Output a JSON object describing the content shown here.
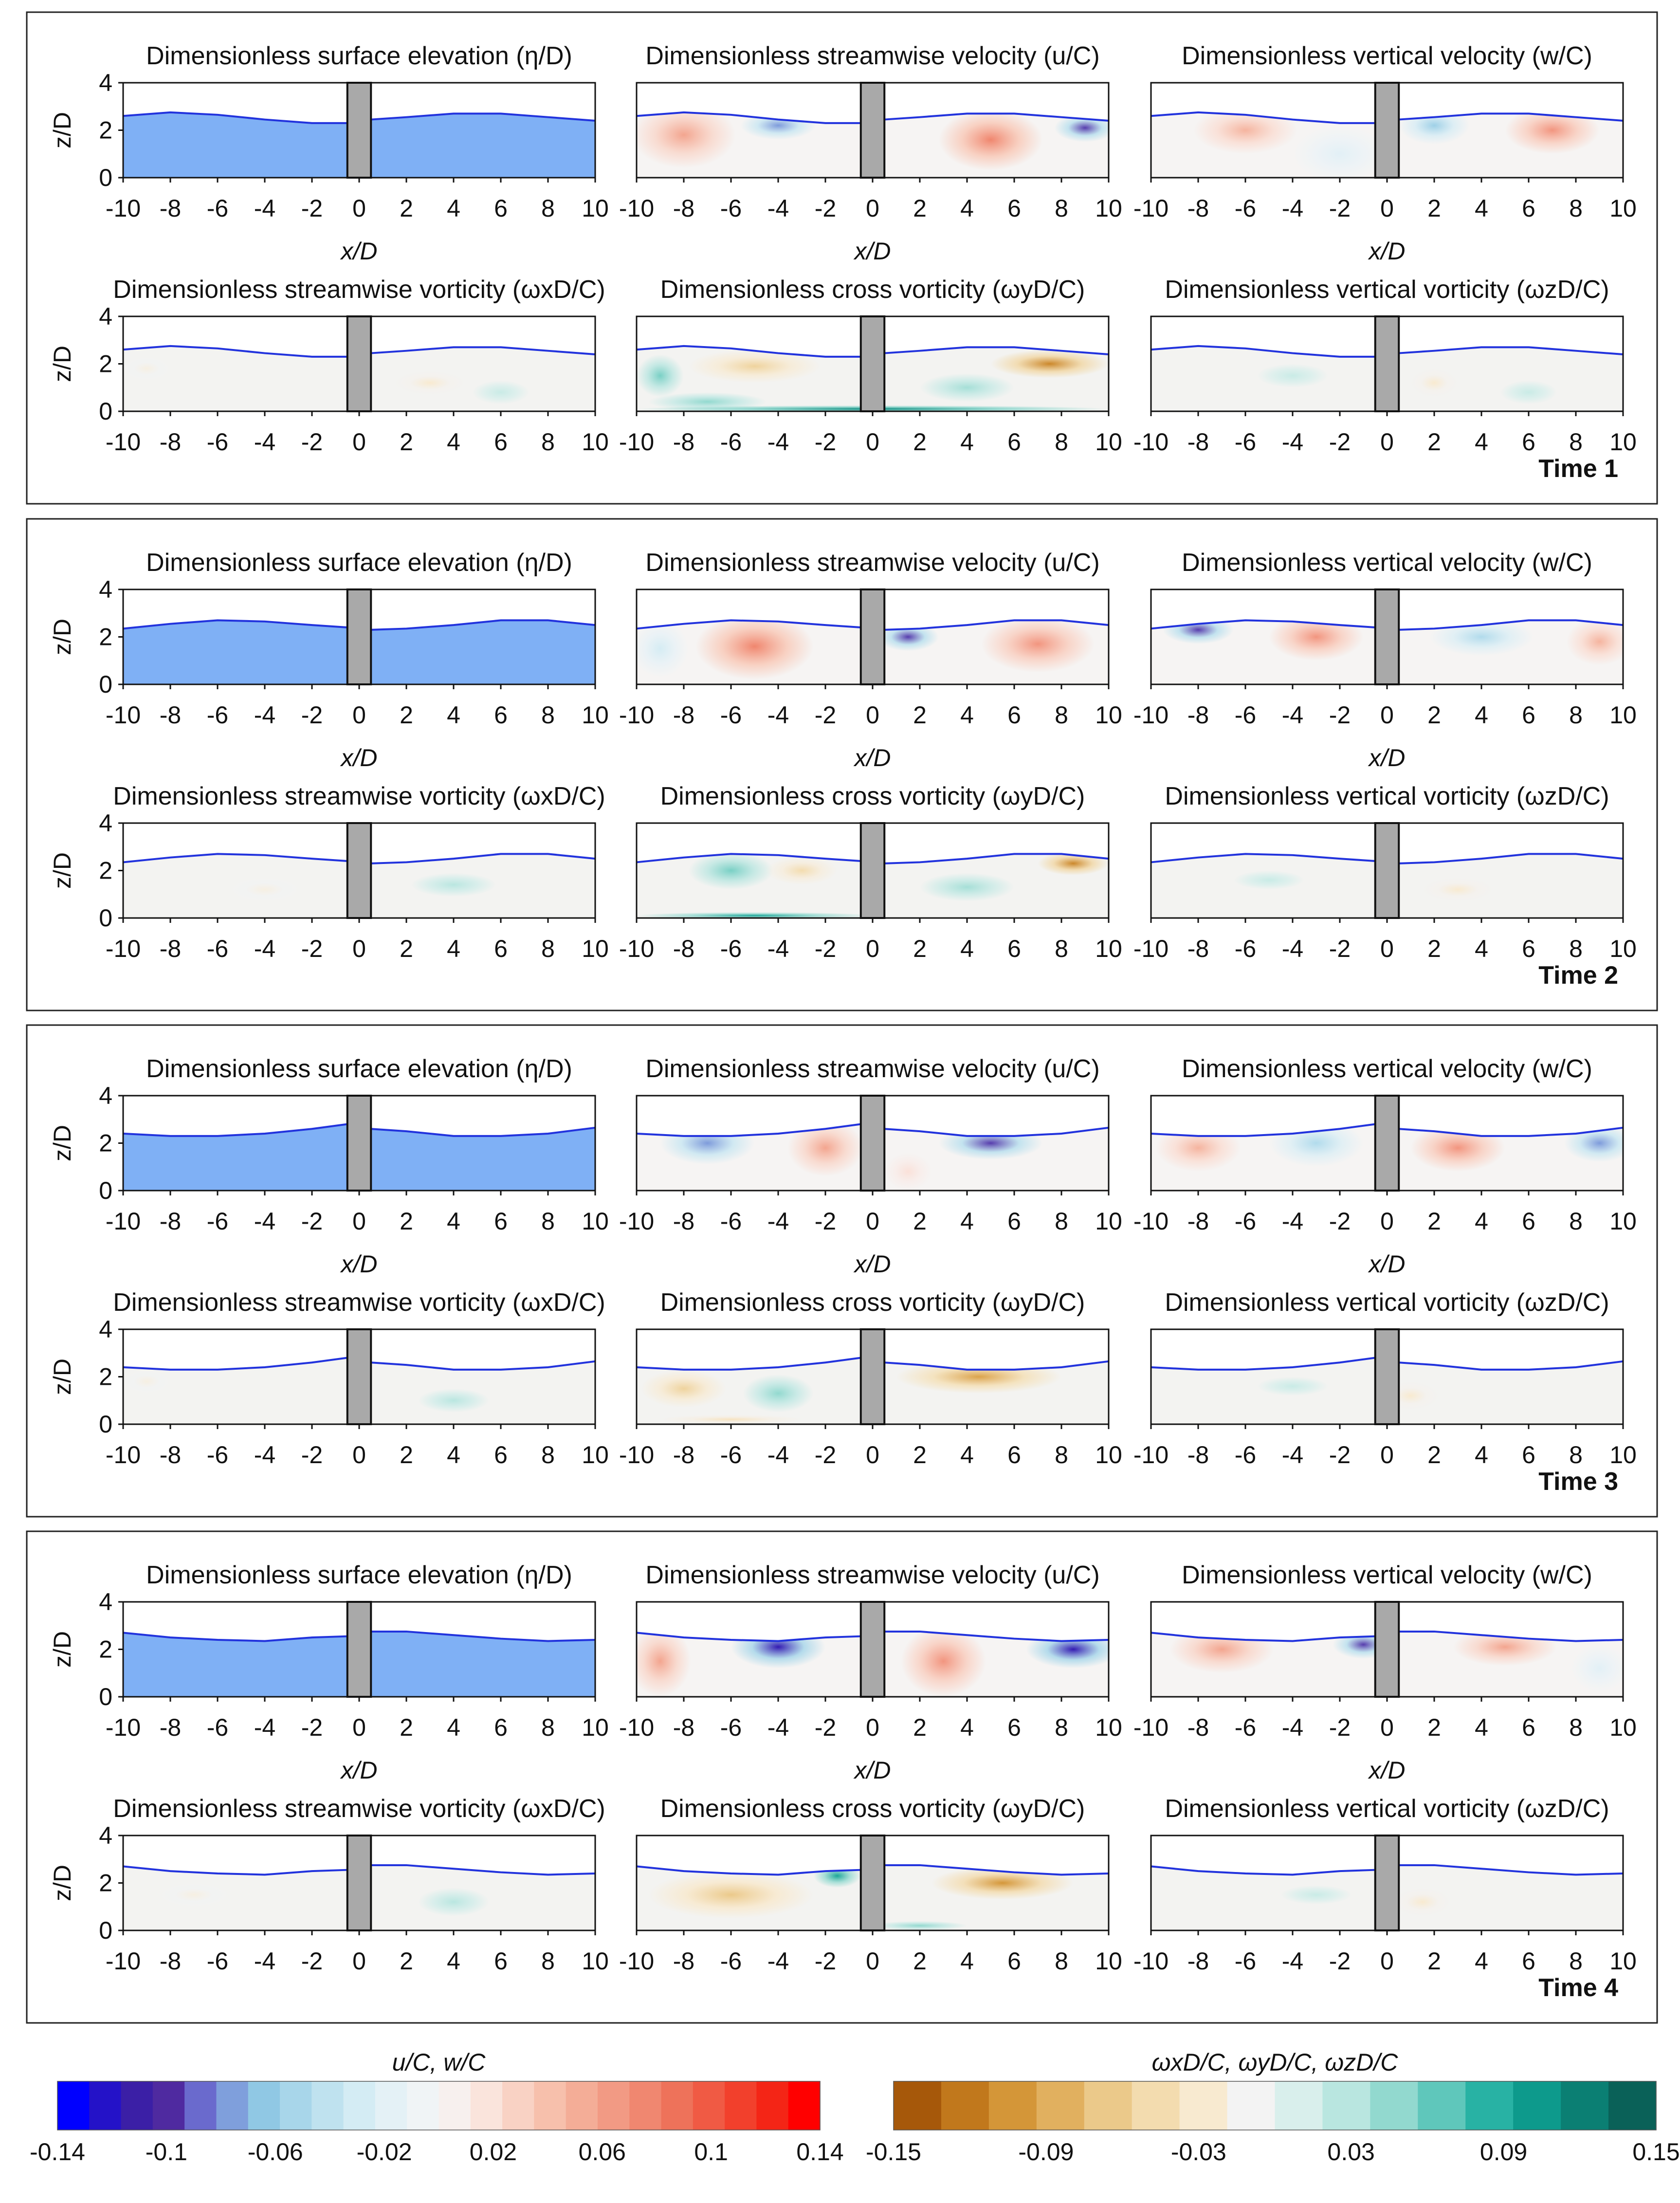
{
  "figure": {
    "x_label": "x/D",
    "y_label": "z/D",
    "x_ticks": [
      "-10",
      "-8",
      "-6",
      "-4",
      "-2",
      "0",
      "2",
      "4",
      "6",
      "8",
      "10"
    ],
    "y_ticks": [
      "0",
      "2",
      "4"
    ],
    "panel_titles": [
      "Dimensionless surface elevation (η/D)",
      "Dimensionless streamwise velocity (u/C)",
      "Dimensionless vertical velocity (w/C)",
      "Dimensionless streamwise vorticity (ωxD/C)",
      "Dimensionless cross vorticity (ωyD/C)",
      "Dimensionless vertical vorticity (ωzD/C)"
    ],
    "time_labels": [
      "Time 1",
      "Time 2",
      "Time 3",
      "Time 4"
    ]
  },
  "colorbars": {
    "velocity": {
      "label": "u/C, w/C",
      "tick_labels": [
        "-0.14",
        "-0.1",
        "-0.06",
        "-0.02",
        "0.02",
        "0.06",
        "0.1",
        "0.14"
      ],
      "colors": [
        "#0000ff",
        "#2412c8",
        "#3b1fa6",
        "#4f2aa0",
        "#6a6acd",
        "#7f9fdc",
        "#90c8e4",
        "#a8d6ea",
        "#bfe2ef",
        "#d4ecf4",
        "#e4f1f6",
        "#f0f4f6",
        "#f7f0ee",
        "#fae4dc",
        "#f9d2c4",
        "#f7c0ac",
        "#f4ad97",
        "#f29a84",
        "#f08770",
        "#ee725a",
        "#f05a44",
        "#f2402c",
        "#f42516",
        "#ff0000"
      ]
    },
    "vorticity": {
      "label": "ωxD/C, ωyD/C, ωzD/C",
      "tick_labels": [
        "-0.15",
        "-0.09",
        "-0.03",
        "0.03",
        "0.09",
        "0.15"
      ],
      "colors": [
        "#a6580a",
        "#c1781c",
        "#d49638",
        "#e1b05f",
        "#ebc98a",
        "#f3dcaf",
        "#f8ead0",
        "#f3f3f3",
        "#d9efec",
        "#b9e6e0",
        "#92d9cf",
        "#5fc7bb",
        "#28b2a4",
        "#0d9a8c",
        "#0b7f73",
        "#0a6158"
      ]
    }
  },
  "chart_data": {
    "type": "heatmap",
    "description_units": "x/D from -10 to 10, z/D from 0 to 4; pile occupies x/D -0.5 to 0.5",
    "x_range": [
      -10,
      10
    ],
    "y_range": [
      0,
      4
    ],
    "pile_x": [
      -0.5,
      0.5
    ],
    "times": [
      {
        "label": "Time 1",
        "surface": [
          [
            -10,
            2.6
          ],
          [
            -8,
            2.75
          ],
          [
            -6,
            2.65
          ],
          [
            -4,
            2.45
          ],
          [
            -2,
            2.3
          ],
          [
            -0.5,
            2.3
          ],
          [
            0.5,
            2.45
          ],
          [
            2,
            2.55
          ],
          [
            4,
            2.7
          ],
          [
            6,
            2.7
          ],
          [
            8,
            2.55
          ],
          [
            10,
            2.4
          ]
        ],
        "u": [
          {
            "x": -8,
            "z": 1.8,
            "v": 0.06,
            "rx": 2.2,
            "rz": 1.4
          },
          {
            "x": -4,
            "z": 2.2,
            "v": -0.08,
            "rx": 1.6,
            "rz": 0.6
          },
          {
            "x": 5,
            "z": 1.6,
            "v": 0.08,
            "rx": 2.2,
            "rz": 1.3
          },
          {
            "x": 9,
            "z": 2.1,
            "v": -0.1,
            "rx": 1.3,
            "rz": 0.6
          }
        ],
        "w": [
          {
            "x": -6,
            "z": 2.0,
            "v": 0.05,
            "rx": 2.2,
            "rz": 1.0
          },
          {
            "x": 2,
            "z": 2.2,
            "v": -0.06,
            "rx": 1.5,
            "rz": 0.8
          },
          {
            "x": 7,
            "z": 2.0,
            "v": 0.07,
            "rx": 2.0,
            "rz": 1.0
          },
          {
            "x": -2,
            "z": 1.0,
            "v": -0.02,
            "rx": 2,
            "rz": 1.2
          }
        ],
        "wx": [
          {
            "x": -9,
            "z": 1.8,
            "v": -0.02,
            "rx": 1,
            "rz": 0.5
          },
          {
            "x": 3,
            "z": 1.2,
            "v": -0.03,
            "rx": 1.5,
            "rz": 0.5
          },
          {
            "x": 6,
            "z": 0.8,
            "v": 0.02,
            "rx": 1.2,
            "rz": 0.5
          }
        ],
        "wy": [
          {
            "x": -5,
            "z": 1.9,
            "v": -0.06,
            "rx": 2.8,
            "rz": 0.7
          },
          {
            "x": -9,
            "z": 1.5,
            "v": 0.06,
            "rx": 1.0,
            "rz": 0.9
          },
          {
            "x": -7,
            "z": 0.4,
            "v": 0.05,
            "rx": 2.5,
            "rz": 0.4
          },
          {
            "x": 7.5,
            "z": 2.0,
            "v": -0.12,
            "rx": 2.5,
            "rz": 0.6
          },
          {
            "x": 4,
            "z": 1.0,
            "v": 0.04,
            "rx": 2,
            "rz": 0.6
          },
          {
            "x": 0,
            "z": 0.1,
            "v": 0.12,
            "rx": 10,
            "rz": 0.15
          }
        ],
        "wz": [
          {
            "x": -4,
            "z": 1.5,
            "v": 0.02,
            "rx": 1.5,
            "rz": 0.5
          },
          {
            "x": 2,
            "z": 1.2,
            "v": -0.03,
            "rx": 1.0,
            "rz": 0.6
          },
          {
            "x": 6,
            "z": 0.8,
            "v": 0.02,
            "rx": 1.2,
            "rz": 0.5
          }
        ]
      },
      {
        "label": "Time 2",
        "surface": [
          [
            -10,
            2.35
          ],
          [
            -8,
            2.55
          ],
          [
            -6,
            2.7
          ],
          [
            -4,
            2.65
          ],
          [
            -2,
            2.5
          ],
          [
            -0.5,
            2.4
          ],
          [
            0.5,
            2.3
          ],
          [
            2,
            2.35
          ],
          [
            4,
            2.5
          ],
          [
            6,
            2.7
          ],
          [
            8,
            2.7
          ],
          [
            10,
            2.5
          ]
        ],
        "u": [
          {
            "x": -5,
            "z": 1.6,
            "v": 0.08,
            "rx": 2.5,
            "rz": 1.4
          },
          {
            "x": 1.5,
            "z": 2.0,
            "v": -0.1,
            "rx": 1.3,
            "rz": 0.6
          },
          {
            "x": 7,
            "z": 1.7,
            "v": 0.07,
            "rx": 2.4,
            "rz": 1.2
          },
          {
            "x": -9,
            "z": 1.5,
            "v": -0.03,
            "rx": 1.2,
            "rz": 1.2
          }
        ],
        "w": [
          {
            "x": -8,
            "z": 2.3,
            "v": -0.1,
            "rx": 1.5,
            "rz": 0.6
          },
          {
            "x": -3,
            "z": 2.0,
            "v": 0.07,
            "rx": 2.0,
            "rz": 1.0
          },
          {
            "x": 4,
            "z": 2.0,
            "v": -0.05,
            "rx": 2.2,
            "rz": 0.8
          },
          {
            "x": 9,
            "z": 1.8,
            "v": 0.05,
            "rx": 1.4,
            "rz": 1.0
          }
        ],
        "wx": [
          {
            "x": -4,
            "z": 1.2,
            "v": -0.02,
            "rx": 1.5,
            "rz": 0.5
          },
          {
            "x": 4,
            "z": 1.4,
            "v": 0.03,
            "rx": 1.8,
            "rz": 0.5
          }
        ],
        "wy": [
          {
            "x": -6,
            "z": 2.0,
            "v": 0.06,
            "rx": 1.8,
            "rz": 0.8
          },
          {
            "x": -3,
            "z": 2.0,
            "v": -0.05,
            "rx": 1.5,
            "rz": 0.6
          },
          {
            "x": 8.5,
            "z": 2.3,
            "v": -0.12,
            "rx": 1.5,
            "rz": 0.5
          },
          {
            "x": 4,
            "z": 1.3,
            "v": 0.04,
            "rx": 2,
            "rz": 0.6
          },
          {
            "x": -5,
            "z": 0.1,
            "v": 0.1,
            "rx": 5,
            "rz": 0.15
          }
        ],
        "wz": [
          {
            "x": -5,
            "z": 1.6,
            "v": 0.02,
            "rx": 1.5,
            "rz": 0.4
          },
          {
            "x": 3,
            "z": 1.2,
            "v": -0.03,
            "rx": 1.5,
            "rz": 0.5
          }
        ]
      },
      {
        "label": "Time 3",
        "surface": [
          [
            -10,
            2.4
          ],
          [
            -8,
            2.3
          ],
          [
            -6,
            2.3
          ],
          [
            -4,
            2.4
          ],
          [
            -2,
            2.6
          ],
          [
            -0.5,
            2.8
          ],
          [
            0.5,
            2.6
          ],
          [
            2,
            2.5
          ],
          [
            4,
            2.3
          ],
          [
            6,
            2.3
          ],
          [
            8,
            2.4
          ],
          [
            10,
            2.65
          ]
        ],
        "u": [
          {
            "x": -7,
            "z": 2.0,
            "v": -0.08,
            "rx": 2.0,
            "rz": 0.9
          },
          {
            "x": -2,
            "z": 1.8,
            "v": 0.06,
            "rx": 1.6,
            "rz": 1.2
          },
          {
            "x": 5,
            "z": 2.0,
            "v": -0.1,
            "rx": 2.2,
            "rz": 0.7
          },
          {
            "x": 1.5,
            "z": 0.8,
            "v": 0.02,
            "rx": 1,
            "rz": 0.8
          }
        ],
        "w": [
          {
            "x": -8,
            "z": 1.8,
            "v": 0.05,
            "rx": 1.8,
            "rz": 1.0
          },
          {
            "x": -3,
            "z": 2.0,
            "v": -0.05,
            "rx": 2.0,
            "rz": 1.0
          },
          {
            "x": 3,
            "z": 1.8,
            "v": 0.07,
            "rx": 2.0,
            "rz": 1.0
          },
          {
            "x": 9,
            "z": 2.0,
            "v": -0.08,
            "rx": 1.5,
            "rz": 0.8
          }
        ],
        "wx": [
          {
            "x": -9,
            "z": 1.8,
            "v": -0.02,
            "rx": 1,
            "rz": 0.5
          },
          {
            "x": 4,
            "z": 1.0,
            "v": 0.03,
            "rx": 1.5,
            "rz": 0.5
          }
        ],
        "wy": [
          {
            "x": -8,
            "z": 1.5,
            "v": -0.06,
            "rx": 1.8,
            "rz": 0.8
          },
          {
            "x": -4,
            "z": 1.3,
            "v": 0.05,
            "rx": 1.5,
            "rz": 0.8
          },
          {
            "x": 4.5,
            "z": 2.0,
            "v": -0.1,
            "rx": 3.5,
            "rz": 0.7
          },
          {
            "x": -6,
            "z": 0.2,
            "v": -0.04,
            "rx": 3,
            "rz": 0.2
          }
        ],
        "wz": [
          {
            "x": 1,
            "z": 1.2,
            "v": -0.03,
            "rx": 1.2,
            "rz": 0.6
          },
          {
            "x": -4,
            "z": 1.6,
            "v": 0.02,
            "rx": 1.5,
            "rz": 0.4
          }
        ]
      },
      {
        "label": "Time 4",
        "surface": [
          [
            -10,
            2.7
          ],
          [
            -8,
            2.5
          ],
          [
            -6,
            2.4
          ],
          [
            -4,
            2.35
          ],
          [
            -2,
            2.5
          ],
          [
            -0.5,
            2.55
          ],
          [
            0.5,
            2.75
          ],
          [
            2,
            2.75
          ],
          [
            4,
            2.6
          ],
          [
            6,
            2.45
          ],
          [
            8,
            2.35
          ],
          [
            10,
            2.4
          ]
        ],
        "u": [
          {
            "x": -9,
            "z": 1.5,
            "v": 0.06,
            "rx": 1.3,
            "rz": 1.5
          },
          {
            "x": -4,
            "z": 2.1,
            "v": -0.12,
            "rx": 2.0,
            "rz": 0.9
          },
          {
            "x": 3,
            "z": 1.5,
            "v": 0.07,
            "rx": 1.8,
            "rz": 1.5
          },
          {
            "x": 8.5,
            "z": 2.0,
            "v": -0.12,
            "rx": 2.0,
            "rz": 0.8
          }
        ],
        "w": [
          {
            "x": -7,
            "z": 2.0,
            "v": 0.06,
            "rx": 2.2,
            "rz": 1.0
          },
          {
            "x": -1,
            "z": 2.2,
            "v": -0.1,
            "rx": 1.3,
            "rz": 0.6
          },
          {
            "x": 5,
            "z": 2.1,
            "v": 0.06,
            "rx": 2.2,
            "rz": 0.8
          },
          {
            "x": 9,
            "z": 1.2,
            "v": -0.02,
            "rx": 1.2,
            "rz": 1
          }
        ],
        "wx": [
          {
            "x": -7,
            "z": 1.5,
            "v": -0.02,
            "rx": 1.5,
            "rz": 0.5
          },
          {
            "x": 4,
            "z": 1.2,
            "v": 0.03,
            "rx": 1.5,
            "rz": 0.6
          }
        ],
        "wy": [
          {
            "x": -6,
            "z": 1.5,
            "v": -0.07,
            "rx": 3.5,
            "rz": 1.0
          },
          {
            "x": -1.5,
            "z": 2.3,
            "v": 0.1,
            "rx": 1.0,
            "rz": 0.5
          },
          {
            "x": 5.5,
            "z": 2.0,
            "v": -0.11,
            "rx": 3.0,
            "rz": 0.7
          },
          {
            "x": 2,
            "z": 0.2,
            "v": 0.05,
            "rx": 2,
            "rz": 0.2
          }
        ],
        "wz": [
          {
            "x": 1.5,
            "z": 1.2,
            "v": -0.03,
            "rx": 1.2,
            "rz": 0.6
          },
          {
            "x": -3,
            "z": 1.5,
            "v": 0.02,
            "rx": 1.5,
            "rz": 0.4
          }
        ]
      }
    ]
  }
}
